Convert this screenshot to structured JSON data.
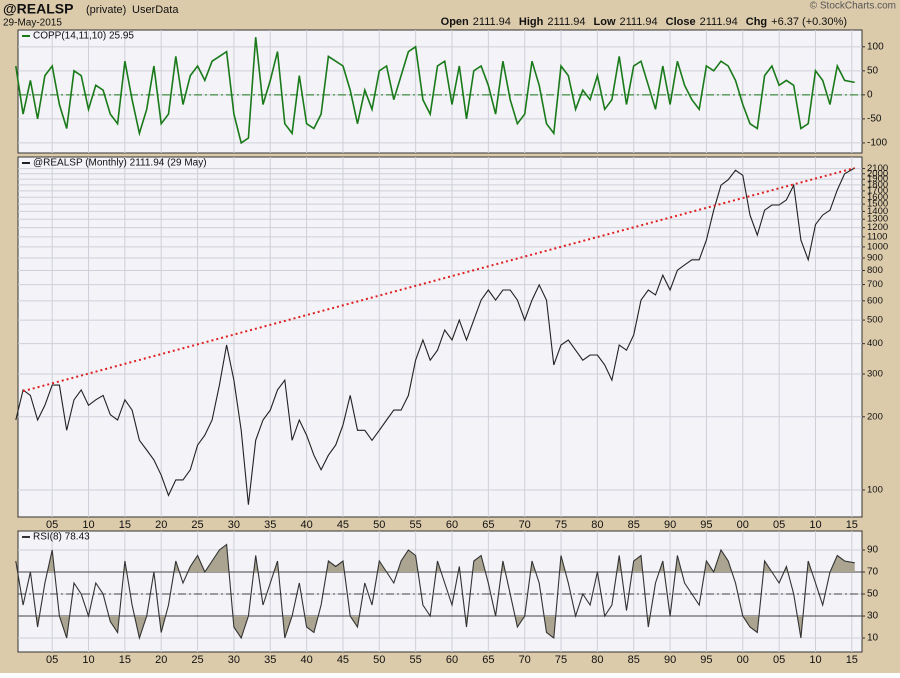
{
  "header": {
    "symbol": "@REALSP",
    "access": "(private)",
    "source": "UserData",
    "date": "29-May-2015",
    "copyright": "© StockCharts.com",
    "quote": [
      {
        "label": "Open",
        "value": "2111.94"
      },
      {
        "label": "High",
        "value": "2111.94"
      },
      {
        "label": "Low",
        "value": "2111.94"
      },
      {
        "label": "Close",
        "value": "2111.94"
      },
      {
        "label": "Chg",
        "value": "+6.37 (+0.30%)"
      }
    ]
  },
  "chart_data": [
    {
      "type": "line",
      "xlim": [
        1900.3,
        2016.4
      ],
      "ylim": [
        -121,
        135
      ],
      "yticks": [
        -100,
        -50,
        0,
        50,
        100
      ],
      "grid": true,
      "xtick_labels": false,
      "xticks": [
        {
          "value": 1905,
          "label": "05"
        },
        {
          "value": 1910,
          "label": "10"
        },
        {
          "value": 1915,
          "label": "15"
        },
        {
          "value": 1920,
          "label": "20"
        },
        {
          "value": 1925,
          "label": "25"
        },
        {
          "value": 1930,
          "label": "30"
        },
        {
          "value": 1935,
          "label": "35"
        },
        {
          "value": 1940,
          "label": "40"
        },
        {
          "value": 1945,
          "label": "45"
        },
        {
          "value": 1950,
          "label": "50"
        },
        {
          "value": 1955,
          "label": "55"
        },
        {
          "value": 1960,
          "label": "60"
        },
        {
          "value": 1965,
          "label": "65"
        },
        {
          "value": 1970,
          "label": "70"
        },
        {
          "value": 1975,
          "label": "75"
        },
        {
          "value": 1980,
          "label": "80"
        },
        {
          "value": 1985,
          "label": "85"
        },
        {
          "value": 1990,
          "label": "90"
        },
        {
          "value": 1995,
          "label": "95"
        },
        {
          "value": 2000,
          "label": "00"
        },
        {
          "value": 2005,
          "label": "05"
        },
        {
          "value": 2010,
          "label": "10"
        },
        {
          "value": 2015,
          "label": "15"
        }
      ],
      "reference_lines": [
        {
          "value": 0,
          "style": "dashdot",
          "color": "#1a7a1a"
        }
      ],
      "x": [
        1900,
        1901,
        1902,
        1903,
        1904,
        1905,
        1906,
        1907,
        1908,
        1909,
        1910,
        1911,
        1912,
        1913,
        1914,
        1915,
        1916,
        1917,
        1918,
        1919,
        1920,
        1921,
        1922,
        1923,
        1924,
        1925,
        1926,
        1927,
        1928,
        1929,
        1930,
        1931,
        1932,
        1933,
        1934,
        1935,
        1936,
        1937,
        1938,
        1939,
        1940,
        1941,
        1942,
        1943,
        1944,
        1945,
        1946,
        1947,
        1948,
        1949,
        1950,
        1951,
        1952,
        1953,
        1954,
        1955,
        1956,
        1957,
        1958,
        1959,
        1960,
        1961,
        1962,
        1963,
        1964,
        1965,
        1966,
        1967,
        1968,
        1969,
        1970,
        1971,
        1972,
        1973,
        1974,
        1975,
        1976,
        1977,
        1978,
        1979,
        1980,
        1981,
        1982,
        1983,
        1984,
        1985,
        1986,
        1987,
        1988,
        1989,
        1990,
        1991,
        1992,
        1993,
        1994,
        1995,
        1996,
        1997,
        1998,
        1999,
        2000,
        2001,
        2002,
        2003,
        2004,
        2005,
        2006,
        2007,
        2008,
        2009,
        2010,
        2011,
        2012,
        2013,
        2014,
        2015.4
      ],
      "series": [
        {
          "name": "COPP(14,11,10) 25.95",
          "color": "#1a7a1a",
          "values": [
            60,
            -40,
            30,
            -50,
            40,
            60,
            -20,
            -70,
            50,
            40,
            -30,
            20,
            10,
            -40,
            -60,
            70,
            -10,
            -80,
            -30,
            60,
            -60,
            -40,
            80,
            -20,
            40,
            60,
            30,
            70,
            80,
            90,
            -40,
            -100,
            -90,
            120,
            -20,
            30,
            90,
            -60,
            -80,
            40,
            -60,
            -70,
            -40,
            80,
            70,
            60,
            10,
            -60,
            10,
            -30,
            50,
            60,
            -10,
            40,
            90,
            100,
            -10,
            -40,
            60,
            70,
            -20,
            60,
            -50,
            50,
            60,
            20,
            -40,
            70,
            -10,
            -60,
            -40,
            70,
            20,
            -60,
            -80,
            60,
            40,
            -30,
            10,
            -10,
            40,
            -30,
            -10,
            80,
            -20,
            60,
            70,
            20,
            -30,
            60,
            -20,
            70,
            20,
            -10,
            -30,
            60,
            50,
            70,
            60,
            30,
            -20,
            -60,
            -70,
            40,
            60,
            20,
            30,
            20,
            -70,
            -60,
            50,
            30,
            -20,
            60,
            30,
            25.95
          ]
        }
      ]
    },
    {
      "type": "line",
      "log_y": true,
      "xlim": [
        1900.3,
        2016.4
      ],
      "ylim": [
        77.4,
        2344
      ],
      "grid": true,
      "xtick_labels": true,
      "yticks": [
        100,
        200,
        300,
        400,
        500,
        600,
        700,
        800,
        900,
        1000,
        1100,
        1200,
        1300,
        1400,
        1500,
        1600,
        1700,
        1800,
        1900,
        2000,
        2100
      ],
      "xticks": [
        {
          "value": 1905,
          "label": "05"
        },
        {
          "value": 1910,
          "label": "10"
        },
        {
          "value": 1915,
          "label": "15"
        },
        {
          "value": 1920,
          "label": "20"
        },
        {
          "value": 1925,
          "label": "25"
        },
        {
          "value": 1930,
          "label": "30"
        },
        {
          "value": 1935,
          "label": "35"
        },
        {
          "value": 1940,
          "label": "40"
        },
        {
          "value": 1945,
          "label": "45"
        },
        {
          "value": 1950,
          "label": "50"
        },
        {
          "value": 1955,
          "label": "55"
        },
        {
          "value": 1960,
          "label": "60"
        },
        {
          "value": 1965,
          "label": "65"
        },
        {
          "value": 1970,
          "label": "70"
        },
        {
          "value": 1975,
          "label": "75"
        },
        {
          "value": 1980,
          "label": "80"
        },
        {
          "value": 1985,
          "label": "85"
        },
        {
          "value": 1990,
          "label": "90"
        },
        {
          "value": 1995,
          "label": "95"
        },
        {
          "value": 2000,
          "label": "00"
        },
        {
          "value": 2005,
          "label": "05"
        },
        {
          "value": 2010,
          "label": "10"
        },
        {
          "value": 2015,
          "label": "15"
        }
      ],
      "trendline": {
        "x": [
          1901,
          2015.4
        ],
        "values": [
          255,
          2111.94
        ],
        "color": "#e02020"
      },
      "x": [
        1900,
        1901,
        1902,
        1903,
        1904,
        1905,
        1906,
        1907,
        1908,
        1909,
        1910,
        1911,
        1912,
        1913,
        1914,
        1915,
        1916,
        1917,
        1918,
        1919,
        1920,
        1921,
        1922,
        1923,
        1924,
        1925,
        1926,
        1927,
        1928,
        1929,
        1930,
        1931,
        1932,
        1933,
        1934,
        1935,
        1936,
        1937,
        1938,
        1939,
        1940,
        1941,
        1942,
        1943,
        1944,
        1945,
        1946,
        1947,
        1948,
        1949,
        1950,
        1951,
        1952,
        1953,
        1954,
        1955,
        1956,
        1957,
        1958,
        1959,
        1960,
        1961,
        1962,
        1963,
        1964,
        1965,
        1966,
        1967,
        1968,
        1969,
        1970,
        1971,
        1972,
        1973,
        1974,
        1975,
        1976,
        1977,
        1978,
        1979,
        1980,
        1981,
        1982,
        1983,
        1984,
        1985,
        1986,
        1987,
        1988,
        1989,
        1990,
        1991,
        1992,
        1993,
        1994,
        1995,
        1996,
        1997,
        1998,
        1999,
        2000,
        2001,
        2002,
        2003,
        2004,
        2005,
        2006,
        2007,
        2008,
        2009,
        2010,
        2011,
        2012,
        2013,
        2014,
        2015.4
      ],
      "series": [
        {
          "name": "@REALSP (Monthly) 2111.94 (29 May)",
          "color": "#222222",
          "values": [
            194,
            258,
            245,
            194,
            223,
            270,
            270,
            176,
            235,
            258,
            223,
            235,
            245,
            204,
            194,
            235,
            213,
            160,
            146,
            133,
            115,
            95,
            110,
            110,
            121,
            153,
            168,
            194,
            270,
            395,
            283,
            176,
            87,
            160,
            194,
            213,
            258,
            283,
            160,
            194,
            168,
            139,
            121,
            139,
            153,
            185,
            245,
            176,
            176,
            160,
            176,
            194,
            213,
            213,
            245,
            342,
            414,
            342,
            376,
            455,
            414,
            500,
            414,
            500,
            604,
            665,
            604,
            665,
            665,
            604,
            500,
            604,
            698,
            604,
            327,
            395,
            414,
            376,
            342,
            359,
            359,
            327,
            283,
            395,
            376,
            434,
            604,
            665,
            635,
            765,
            665,
            802,
            843,
            885,
            885,
            1067,
            1416,
            1795,
            1890,
            2066,
            1970,
            1352,
            1118,
            1416,
            1487,
            1487,
            1561,
            1795,
            1067,
            885,
            1235,
            1352,
            1416,
            1714,
            2000,
            2111.94
          ]
        }
      ]
    },
    {
      "type": "line",
      "xlim": [
        1900.3,
        2016.4
      ],
      "ylim": [
        -2.7,
        107.3
      ],
      "yticks": [
        10,
        30,
        50,
        70,
        90
      ],
      "grid": true,
      "xtick_labels": true,
      "xticks": [
        {
          "value": 1905,
          "label": "05"
        },
        {
          "value": 1910,
          "label": "10"
        },
        {
          "value": 1915,
          "label": "15"
        },
        {
          "value": 1920,
          "label": "20"
        },
        {
          "value": 1925,
          "label": "25"
        },
        {
          "value": 1930,
          "label": "30"
        },
        {
          "value": 1935,
          "label": "35"
        },
        {
          "value": 1940,
          "label": "40"
        },
        {
          "value": 1945,
          "label": "45"
        },
        {
          "value": 1950,
          "label": "50"
        },
        {
          "value": 1955,
          "label": "55"
        },
        {
          "value": 1960,
          "label": "60"
        },
        {
          "value": 1965,
          "label": "65"
        },
        {
          "value": 1970,
          "label": "70"
        },
        {
          "value": 1975,
          "label": "75"
        },
        {
          "value": 1980,
          "label": "80"
        },
        {
          "value": 1985,
          "label": "85"
        },
        {
          "value": 1990,
          "label": "90"
        },
        {
          "value": 1995,
          "label": "95"
        },
        {
          "value": 2000,
          "label": "00"
        },
        {
          "value": 2005,
          "label": "05"
        },
        {
          "value": 2010,
          "label": "10"
        },
        {
          "value": 2015,
          "label": "15"
        }
      ],
      "reference_lines": [
        {
          "value": 70,
          "style": "solid",
          "color": "#444444",
          "fill": "above"
        },
        {
          "value": 50,
          "style": "dashdot",
          "color": "#444444"
        },
        {
          "value": 30,
          "style": "solid",
          "color": "#444444",
          "fill": "below"
        }
      ],
      "fill_color": "#aaa491",
      "x": [
        1900,
        1901,
        1902,
        1903,
        1904,
        1905,
        1906,
        1907,
        1908,
        1909,
        1910,
        1911,
        1912,
        1913,
        1914,
        1915,
        1916,
        1917,
        1918,
        1919,
        1920,
        1921,
        1922,
        1923,
        1924,
        1925,
        1926,
        1927,
        1928,
        1929,
        1930,
        1931,
        1932,
        1933,
        1934,
        1935,
        1936,
        1937,
        1938,
        1939,
        1940,
        1941,
        1942,
        1943,
        1944,
        1945,
        1946,
        1947,
        1948,
        1949,
        1950,
        1951,
        1952,
        1953,
        1954,
        1955,
        1956,
        1957,
        1958,
        1959,
        1960,
        1961,
        1962,
        1963,
        1964,
        1965,
        1966,
        1967,
        1968,
        1969,
        1970,
        1971,
        1972,
        1973,
        1974,
        1975,
        1976,
        1977,
        1978,
        1979,
        1980,
        1981,
        1982,
        1983,
        1984,
        1985,
        1986,
        1987,
        1988,
        1989,
        1990,
        1991,
        1992,
        1993,
        1994,
        1995,
        1996,
        1997,
        1998,
        1999,
        2000,
        2001,
        2002,
        2003,
        2004,
        2005,
        2006,
        2007,
        2008,
        2009,
        2010,
        2011,
        2012,
        2013,
        2014,
        2015.4
      ],
      "series": [
        {
          "name": "RSI(8) 78.43",
          "color": "#333333",
          "values": [
            80,
            40,
            70,
            20,
            60,
            90,
            30,
            10,
            60,
            50,
            30,
            60,
            50,
            25,
            15,
            80,
            40,
            10,
            30,
            70,
            15,
            40,
            80,
            60,
            75,
            85,
            70,
            80,
            90,
            95,
            20,
            10,
            30,
            85,
            40,
            60,
            80,
            10,
            30,
            60,
            20,
            15,
            40,
            80,
            75,
            80,
            30,
            20,
            60,
            40,
            80,
            70,
            60,
            80,
            90,
            85,
            40,
            30,
            80,
            60,
            40,
            75,
            20,
            80,
            85,
            60,
            30,
            80,
            50,
            20,
            30,
            80,
            60,
            15,
            10,
            85,
            60,
            30,
            50,
            40,
            70,
            30,
            40,
            85,
            35,
            80,
            85,
            20,
            60,
            80,
            30,
            85,
            60,
            50,
            40,
            80,
            70,
            90,
            80,
            60,
            30,
            20,
            15,
            80,
            70,
            60,
            75,
            50,
            10,
            80,
            60,
            40,
            70,
            85,
            80,
            78.43
          ]
        }
      ]
    }
  ]
}
